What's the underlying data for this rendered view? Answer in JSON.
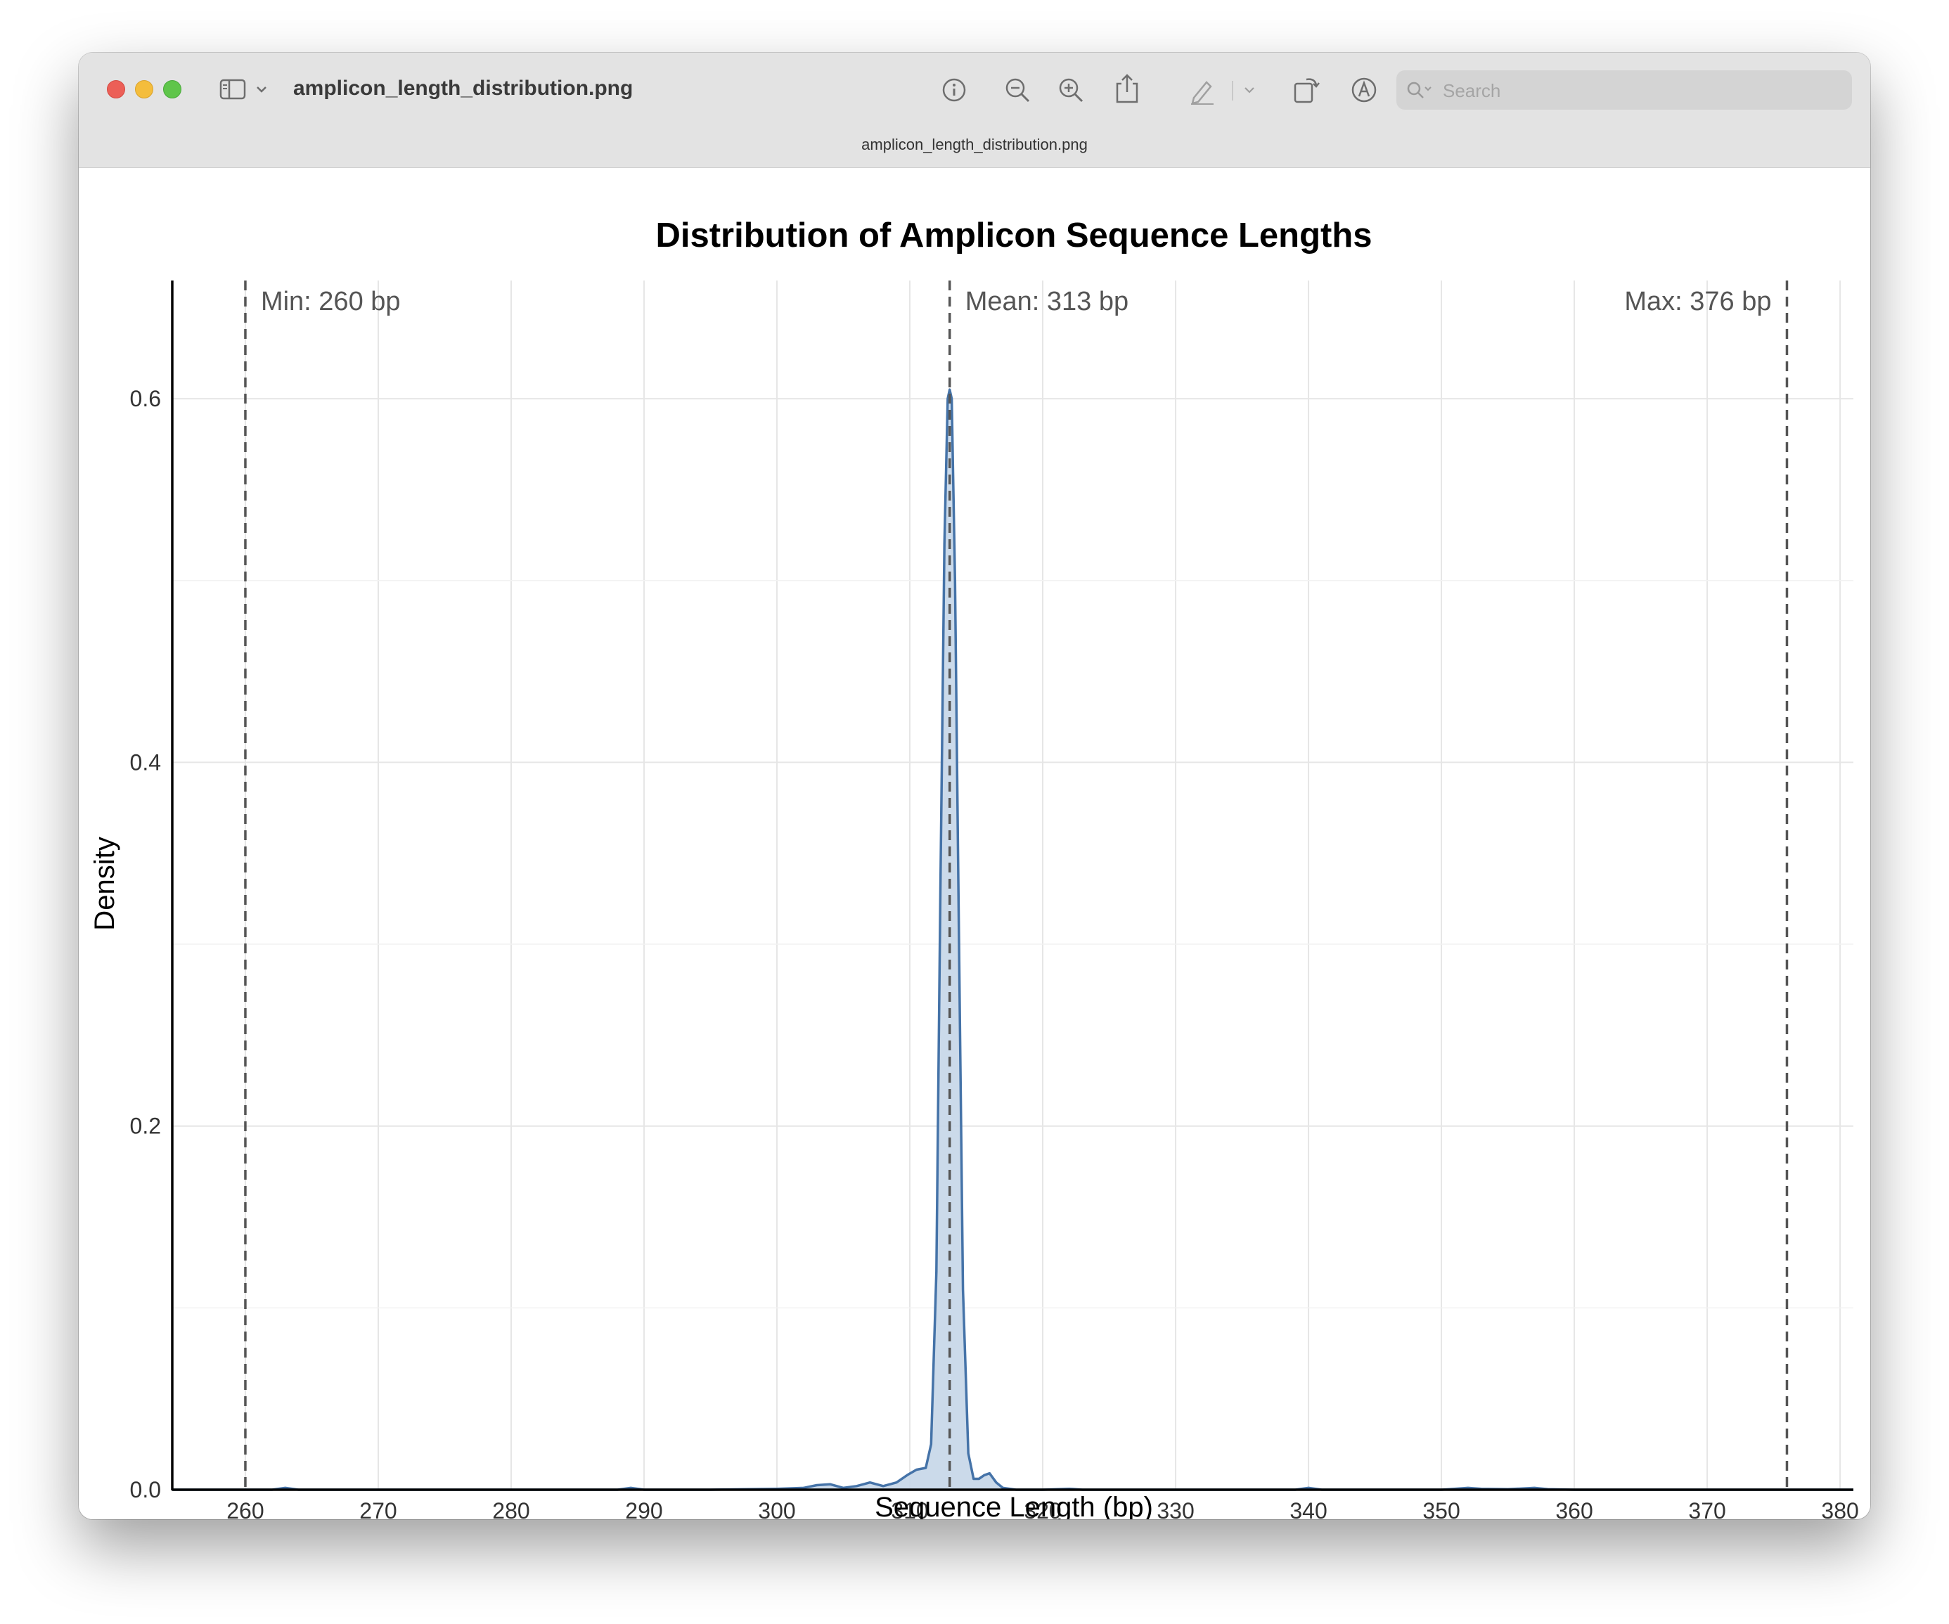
{
  "window": {
    "title": "amplicon_length_distribution.png",
    "tab_title": "amplicon_length_distribution.png",
    "search_placeholder": "Search"
  },
  "toolbar": {
    "icons": [
      "sidebar-icon",
      "chevron-down-icon",
      "info-icon",
      "zoom-out-icon",
      "zoom-in-icon",
      "share-icon",
      "markup-pen-icon",
      "chevron-down-icon",
      "rotate-icon",
      "annotate-icon",
      "signature-icon",
      "search-icon"
    ]
  },
  "chart_data": {
    "type": "area",
    "title": "Distribution of Amplicon Sequence Lengths",
    "xlabel": "Sequence Length (bp)",
    "ylabel": "Density",
    "xlim": [
      254.5,
      381
    ],
    "ylim": [
      0,
      0.665
    ],
    "xticks": [
      260,
      270,
      280,
      290,
      300,
      310,
      320,
      330,
      340,
      350,
      360,
      370,
      380
    ],
    "yticks": [
      0.0,
      0.2,
      0.4,
      0.6
    ],
    "ytick_labels": [
      "0.0",
      "0.2",
      "0.4",
      "0.6"
    ],
    "grid": true,
    "fill_color": "#c5d6e8",
    "line_color": "#4573a8",
    "series": [
      {
        "x": [
          254.5,
          258,
          262,
          263,
          264,
          270,
          280,
          288,
          289,
          290,
          295,
          300,
          302,
          303,
          304,
          305,
          306,
          307,
          308,
          309,
          309.8,
          310.5,
          311.2,
          311.6,
          312.0,
          312.3,
          312.6,
          312.85,
          313.0,
          313.15,
          313.4,
          313.7,
          314.0,
          314.4,
          314.8,
          315.2,
          315.6,
          316.0,
          316.5,
          317.0,
          318,
          320,
          322,
          323,
          330,
          339,
          340,
          341,
          350,
          351,
          352,
          353,
          355,
          356,
          357,
          358,
          360,
          370,
          376,
          381
        ],
        "y": [
          0.0,
          0.0,
          0.0,
          0.001,
          0.0,
          0.0,
          0.0,
          0.0,
          0.001,
          0.0,
          0.0,
          0.0005,
          0.001,
          0.0025,
          0.003,
          0.001,
          0.002,
          0.004,
          0.002,
          0.004,
          0.008,
          0.011,
          0.012,
          0.025,
          0.12,
          0.33,
          0.52,
          0.6,
          0.605,
          0.6,
          0.5,
          0.3,
          0.11,
          0.02,
          0.006,
          0.006,
          0.008,
          0.009,
          0.004,
          0.001,
          0.0,
          0.0,
          0.0005,
          0.0,
          0.0,
          0.0,
          0.001,
          0.0,
          0.0,
          0.0005,
          0.001,
          0.0005,
          0.0003,
          0.0006,
          0.001,
          0.0003,
          0.0,
          0.0,
          0.0,
          0.0
        ]
      }
    ],
    "reference_lines": [
      {
        "x": 260,
        "label": "Min: 260 bp",
        "label_side": "right"
      },
      {
        "x": 313,
        "label": "Mean: 313 bp",
        "label_side": "right"
      },
      {
        "x": 376,
        "label": "Max: 376 bp",
        "label_side": "left"
      }
    ]
  }
}
